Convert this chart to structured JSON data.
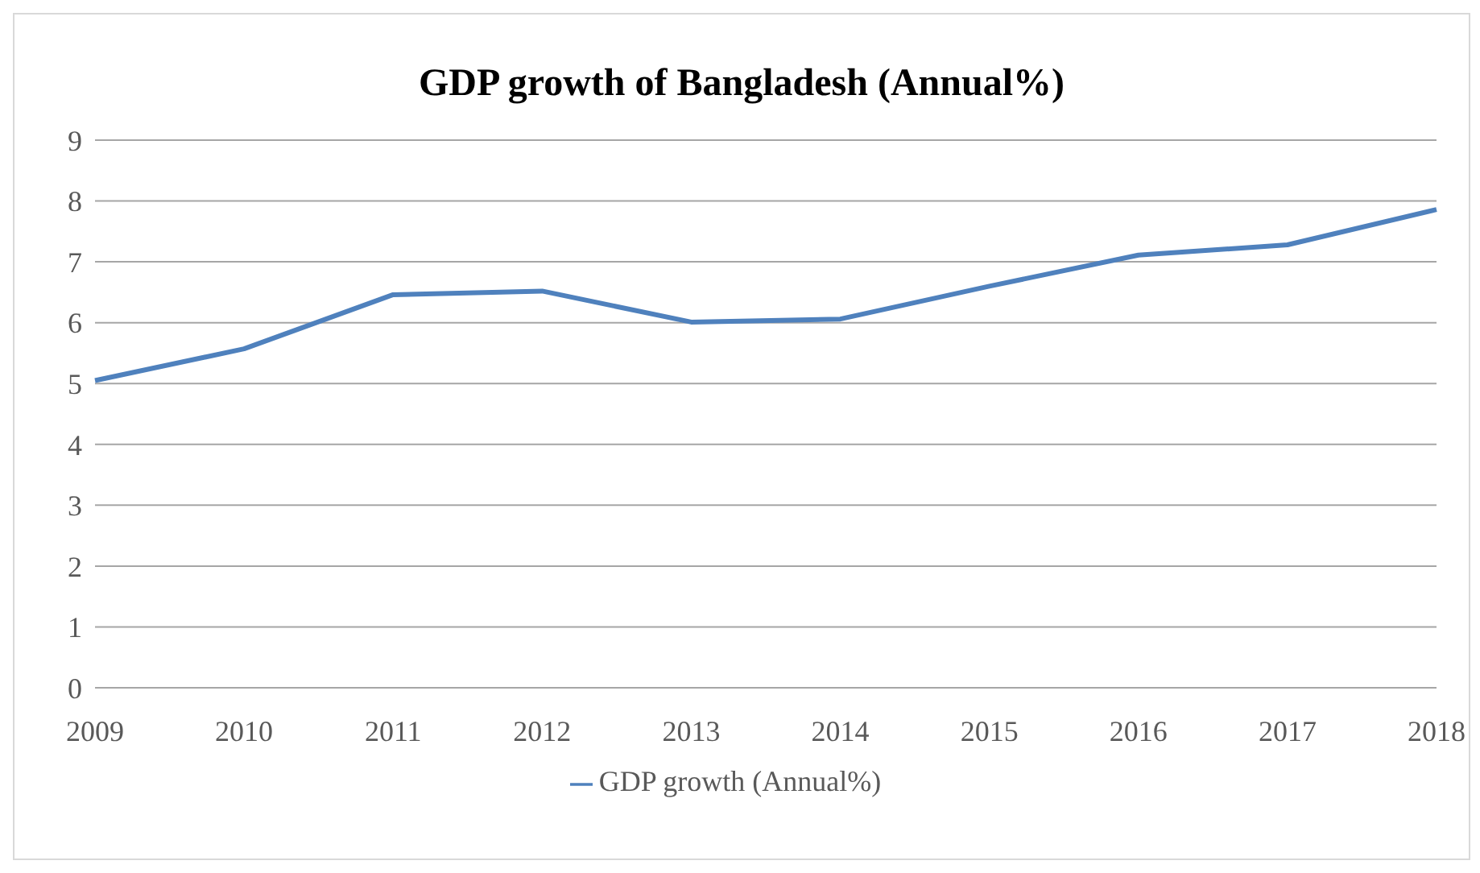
{
  "chart_data": {
    "type": "line",
    "title": "GDP growth of Bangladesh (Annual%)",
    "categories": [
      "2009",
      "2010",
      "2011",
      "2012",
      "2013",
      "2014",
      "2015",
      "2016",
      "2017",
      "2018"
    ],
    "series": [
      {
        "name": "GDP growth (Annual%)",
        "color": "#4f81bd",
        "values": [
          5.05,
          5.57,
          6.46,
          6.52,
          6.01,
          6.06,
          6.6,
          7.11,
          7.28,
          7.86
        ]
      }
    ],
    "ylim": [
      0,
      9
    ],
    "yticks": [
      0,
      1,
      2,
      3,
      4,
      5,
      6,
      7,
      8,
      9
    ],
    "grid": "y",
    "legend": "bottom",
    "marker": "none",
    "line_style": "solid"
  }
}
